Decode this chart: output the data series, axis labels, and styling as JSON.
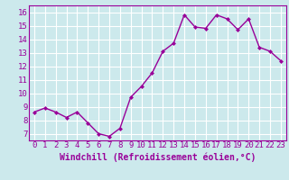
{
  "x": [
    0,
    1,
    2,
    3,
    4,
    5,
    6,
    7,
    8,
    9,
    10,
    11,
    12,
    13,
    14,
    15,
    16,
    17,
    18,
    19,
    20,
    21,
    22,
    23
  ],
  "y": [
    8.6,
    8.9,
    8.6,
    8.2,
    8.6,
    7.8,
    7.0,
    6.8,
    7.4,
    9.7,
    10.5,
    11.5,
    13.1,
    13.7,
    15.8,
    14.9,
    14.8,
    15.8,
    15.5,
    14.7,
    15.5,
    13.4,
    13.1,
    12.4
  ],
  "line_color": "#990099",
  "marker": "D",
  "marker_size": 2.0,
  "bg_color": "#cce9ec",
  "grid_color": "#ffffff",
  "tick_color": "#990099",
  "xlabel": "Windchill (Refroidissement éolien,°C)",
  "xlabel_fontsize": 7.0,
  "ylim": [
    6.5,
    16.5
  ],
  "yticks": [
    7,
    8,
    9,
    10,
    11,
    12,
    13,
    14,
    15,
    16
  ],
  "xticks": [
    0,
    1,
    2,
    3,
    4,
    5,
    6,
    7,
    8,
    9,
    10,
    11,
    12,
    13,
    14,
    15,
    16,
    17,
    18,
    19,
    20,
    21,
    22,
    23
  ],
  "tick_fontsize": 6.5,
  "line_width": 1.0
}
